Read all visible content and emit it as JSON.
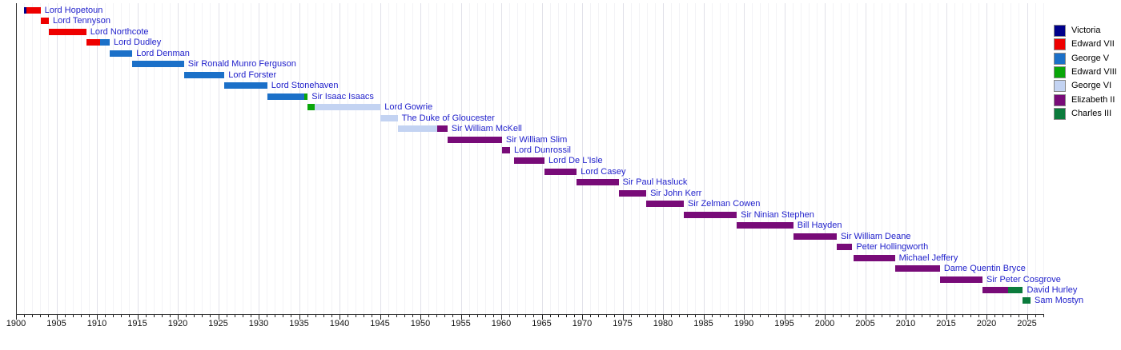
{
  "chart_data": {
    "type": "bar",
    "variant": "timeline-gantt",
    "title": "",
    "xlabel": "",
    "ylabel": "",
    "axis": {
      "min": 1900,
      "max": 2027,
      "tick_step": 1,
      "label_step": 5,
      "tick_labels": [
        "1900",
        "1905",
        "1910",
        "1915",
        "1920",
        "1925",
        "1930",
        "1935",
        "1940",
        "1945",
        "1950",
        "1955",
        "1960",
        "1965",
        "1970",
        "1975",
        "1980",
        "1985",
        "1990",
        "1995",
        "2000",
        "2005",
        "2010",
        "2015",
        "2020",
        "2025"
      ],
      "grid": "on",
      "legend_position": "right"
    },
    "monarchs": [
      {
        "id": "victoria",
        "label": "Victoria",
        "color": "#00008B"
      },
      {
        "id": "edward_vii",
        "label": "Edward VII",
        "color": "#EE0000"
      },
      {
        "id": "george_v",
        "label": "George V",
        "color": "#1B70C8"
      },
      {
        "id": "edward_viii",
        "label": "Edward VIII",
        "color": "#09A609"
      },
      {
        "id": "george_vi",
        "label": "George VI",
        "color": "#C3D3F2"
      },
      {
        "id": "elizabeth_ii",
        "label": "Elizabeth II",
        "color": "#780B78"
      },
      {
        "id": "charles_iii",
        "label": "Charles III",
        "color": "#0B7B3C"
      }
    ],
    "rows": [
      {
        "name": "Lord Hopetoun",
        "segments": [
          {
            "monarch": "victoria",
            "from": 1901.0,
            "to": 1901.3
          },
          {
            "monarch": "edward_vii",
            "from": 1901.3,
            "to": 1903.03
          }
        ]
      },
      {
        "name": "Lord Tennyson",
        "segments": [
          {
            "monarch": "edward_vii",
            "from": 1903.03,
            "to": 1904.06
          }
        ]
      },
      {
        "name": "Lord Northcote",
        "segments": [
          {
            "monarch": "edward_vii",
            "from": 1904.06,
            "to": 1908.69
          }
        ]
      },
      {
        "name": "Lord Dudley",
        "segments": [
          {
            "monarch": "edward_vii",
            "from": 1908.69,
            "to": 1910.35
          },
          {
            "monarch": "george_v",
            "from": 1910.35,
            "to": 1911.58
          }
        ]
      },
      {
        "name": "Lord Denman",
        "segments": [
          {
            "monarch": "george_v",
            "from": 1911.58,
            "to": 1914.38
          }
        ]
      },
      {
        "name": "Sir Ronald Munro Ferguson",
        "segments": [
          {
            "monarch": "george_v",
            "from": 1914.38,
            "to": 1920.77
          }
        ]
      },
      {
        "name": "Lord Forster",
        "segments": [
          {
            "monarch": "george_v",
            "from": 1920.77,
            "to": 1925.77
          }
        ]
      },
      {
        "name": "Lord Stonehaven",
        "segments": [
          {
            "monarch": "george_v",
            "from": 1925.77,
            "to": 1931.06
          }
        ]
      },
      {
        "name": "Sir Isaac Isaacs",
        "segments": [
          {
            "monarch": "george_v",
            "from": 1931.06,
            "to": 1935.6
          },
          {
            "monarch": "edward_viii",
            "from": 1935.6,
            "to": 1936.07
          }
        ]
      },
      {
        "name": "Lord Gowrie",
        "segments": [
          {
            "monarch": "edward_viii",
            "from": 1936.07,
            "to": 1936.95
          },
          {
            "monarch": "george_vi",
            "from": 1936.95,
            "to": 1945.08
          }
        ]
      },
      {
        "name": "The Duke of Gloucester",
        "segments": [
          {
            "monarch": "george_vi",
            "from": 1945.08,
            "to": 1947.19
          }
        ]
      },
      {
        "name": "Sir William McKell",
        "segments": [
          {
            "monarch": "george_vi",
            "from": 1947.19,
            "to": 1952.1
          },
          {
            "monarch": "elizabeth_ii",
            "from": 1952.1,
            "to": 1953.35
          }
        ]
      },
      {
        "name": "Sir William Slim",
        "segments": [
          {
            "monarch": "elizabeth_ii",
            "from": 1953.35,
            "to": 1960.09
          }
        ]
      },
      {
        "name": "Lord Dunrossil",
        "segments": [
          {
            "monarch": "elizabeth_ii",
            "from": 1960.09,
            "to": 1961.09
          }
        ]
      },
      {
        "name": "Lord De L'Isle",
        "segments": [
          {
            "monarch": "elizabeth_ii",
            "from": 1961.59,
            "to": 1965.35
          }
        ]
      },
      {
        "name": "Lord Casey",
        "segments": [
          {
            "monarch": "elizabeth_ii",
            "from": 1965.35,
            "to": 1969.33
          }
        ]
      },
      {
        "name": "Sir Paul Hasluck",
        "segments": [
          {
            "monarch": "elizabeth_ii",
            "from": 1969.33,
            "to": 1974.52
          }
        ]
      },
      {
        "name": "Sir John Kerr",
        "segments": [
          {
            "monarch": "elizabeth_ii",
            "from": 1974.52,
            "to": 1977.93
          }
        ]
      },
      {
        "name": "Sir Zelman Cowen",
        "segments": [
          {
            "monarch": "elizabeth_ii",
            "from": 1977.93,
            "to": 1982.57
          }
        ]
      },
      {
        "name": "Sir Ninian Stephen",
        "segments": [
          {
            "monarch": "elizabeth_ii",
            "from": 1982.57,
            "to": 1989.12
          }
        ]
      },
      {
        "name": "Bill Hayden",
        "segments": [
          {
            "monarch": "elizabeth_ii",
            "from": 1989.12,
            "to": 1996.12
          }
        ]
      },
      {
        "name": "Sir William Deane",
        "segments": [
          {
            "monarch": "elizabeth_ii",
            "from": 1996.12,
            "to": 2001.49
          }
        ]
      },
      {
        "name": "Peter Hollingworth",
        "segments": [
          {
            "monarch": "elizabeth_ii",
            "from": 2001.49,
            "to": 2003.4
          }
        ]
      },
      {
        "name": "Michael Jeffery",
        "segments": [
          {
            "monarch": "elizabeth_ii",
            "from": 2003.61,
            "to": 2008.68
          }
        ]
      },
      {
        "name": "Dame Quentin Bryce",
        "segments": [
          {
            "monarch": "elizabeth_ii",
            "from": 2008.68,
            "to": 2014.24
          }
        ]
      },
      {
        "name": "Sir Peter Cosgrove",
        "segments": [
          {
            "monarch": "elizabeth_ii",
            "from": 2014.24,
            "to": 2019.5
          }
        ]
      },
      {
        "name": "David Hurley",
        "segments": [
          {
            "monarch": "elizabeth_ii",
            "from": 2019.5,
            "to": 2022.69
          },
          {
            "monarch": "charles_iii",
            "from": 2022.69,
            "to": 2024.5
          }
        ]
      },
      {
        "name": "Sam Mostyn",
        "segments": [
          {
            "monarch": "charles_iii",
            "from": 2024.5,
            "to": 2025.45
          }
        ]
      }
    ],
    "colors": {
      "label_link": "#2222cc",
      "axis_text": "#111111",
      "axis_line": "#333333",
      "grid_minor": "#f3f3f6",
      "grid_major": "#e1e1e9",
      "background": "#ffffff"
    }
  }
}
